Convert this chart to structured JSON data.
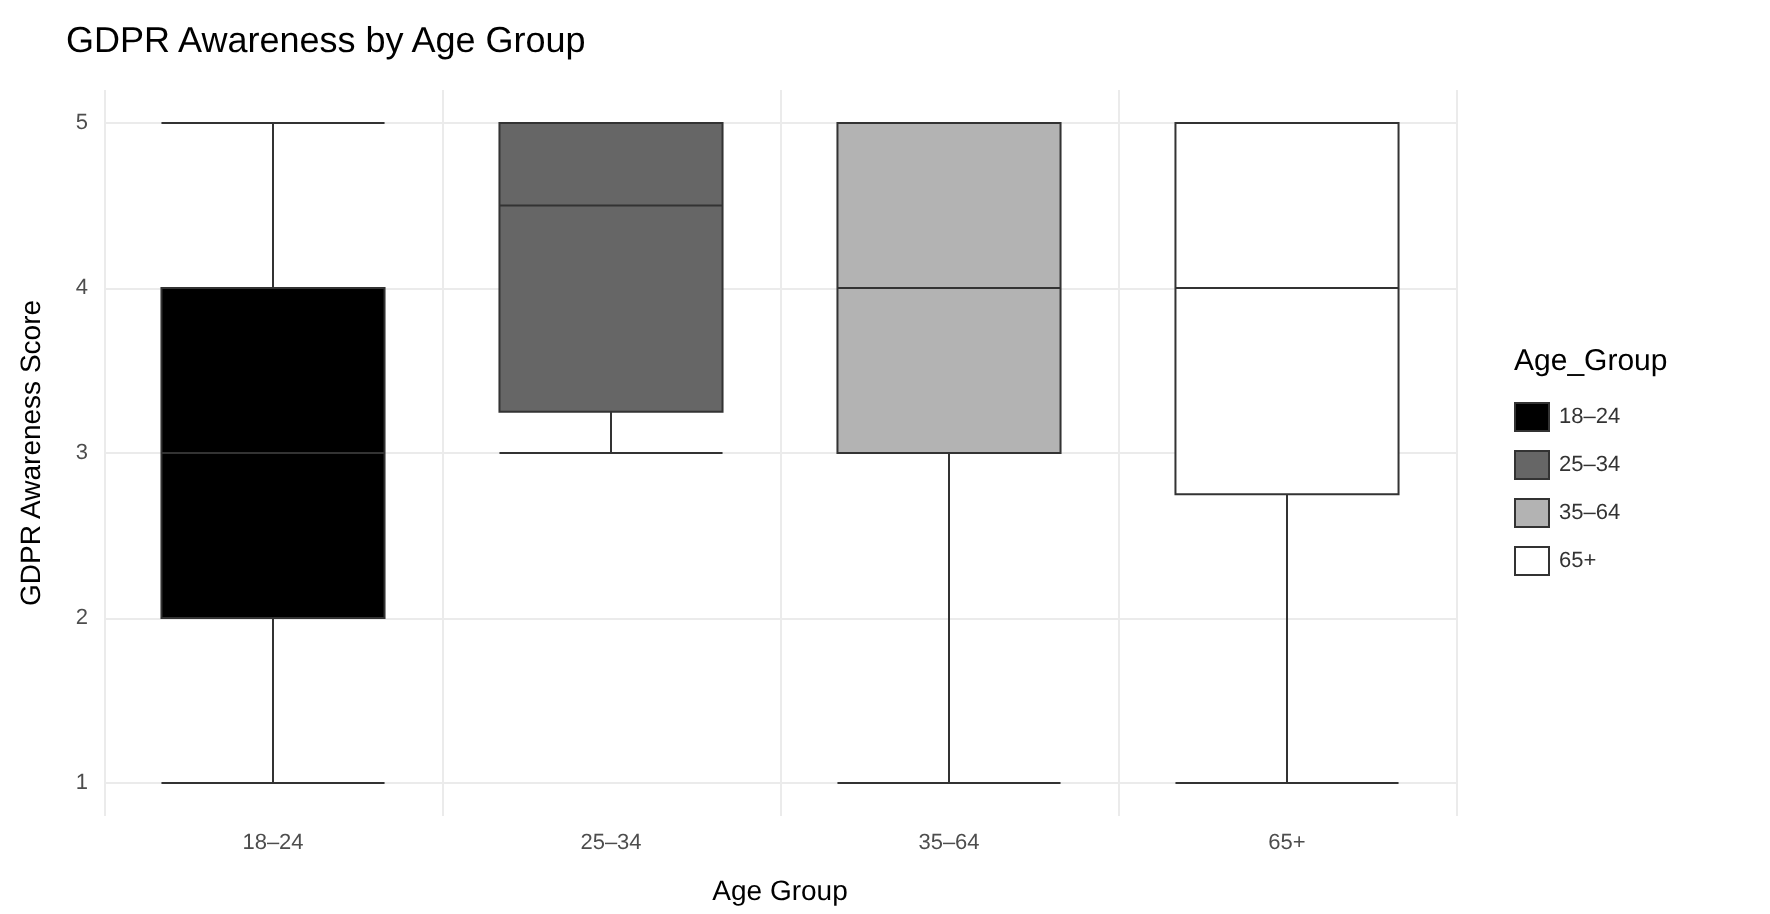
{
  "chart_data": {
    "type": "box",
    "title": "GDPR Awareness by Age Group",
    "xlabel": "Age Group",
    "ylabel": "GDPR Awareness Score",
    "legend_title": "Age_Group",
    "categories": [
      "18–24",
      "25–34",
      "35–64",
      "65+"
    ],
    "series": [
      {
        "name": "18–24",
        "color": "#000000",
        "boxes": [
          {
            "low": 1,
            "q1": 2,
            "median": 3,
            "q3": 4,
            "high": 5
          },
          null,
          null,
          null
        ]
      },
      {
        "name": "25–34",
        "color": "#666666",
        "boxes": [
          null,
          {
            "low": 3,
            "q1": 3.25,
            "median": 4.5,
            "q3": 5,
            "high": 5
          },
          null,
          null
        ]
      },
      {
        "name": "35–64",
        "color": "#b3b3b3",
        "boxes": [
          null,
          null,
          {
            "low": 1,
            "q1": 3,
            "median": 4,
            "q3": 5,
            "high": 5
          },
          null
        ]
      },
      {
        "name": "65+",
        "color": "#ffffff",
        "boxes": [
          null,
          null,
          null,
          {
            "low": 1,
            "q1": 2.75,
            "median": 4,
            "q3": 5,
            "high": 5
          }
        ]
      }
    ],
    "ylim": [
      0.8,
      5.2
    ],
    "yticks": [
      1,
      2,
      3,
      4,
      5
    ],
    "grid": true,
    "legend": "right"
  }
}
